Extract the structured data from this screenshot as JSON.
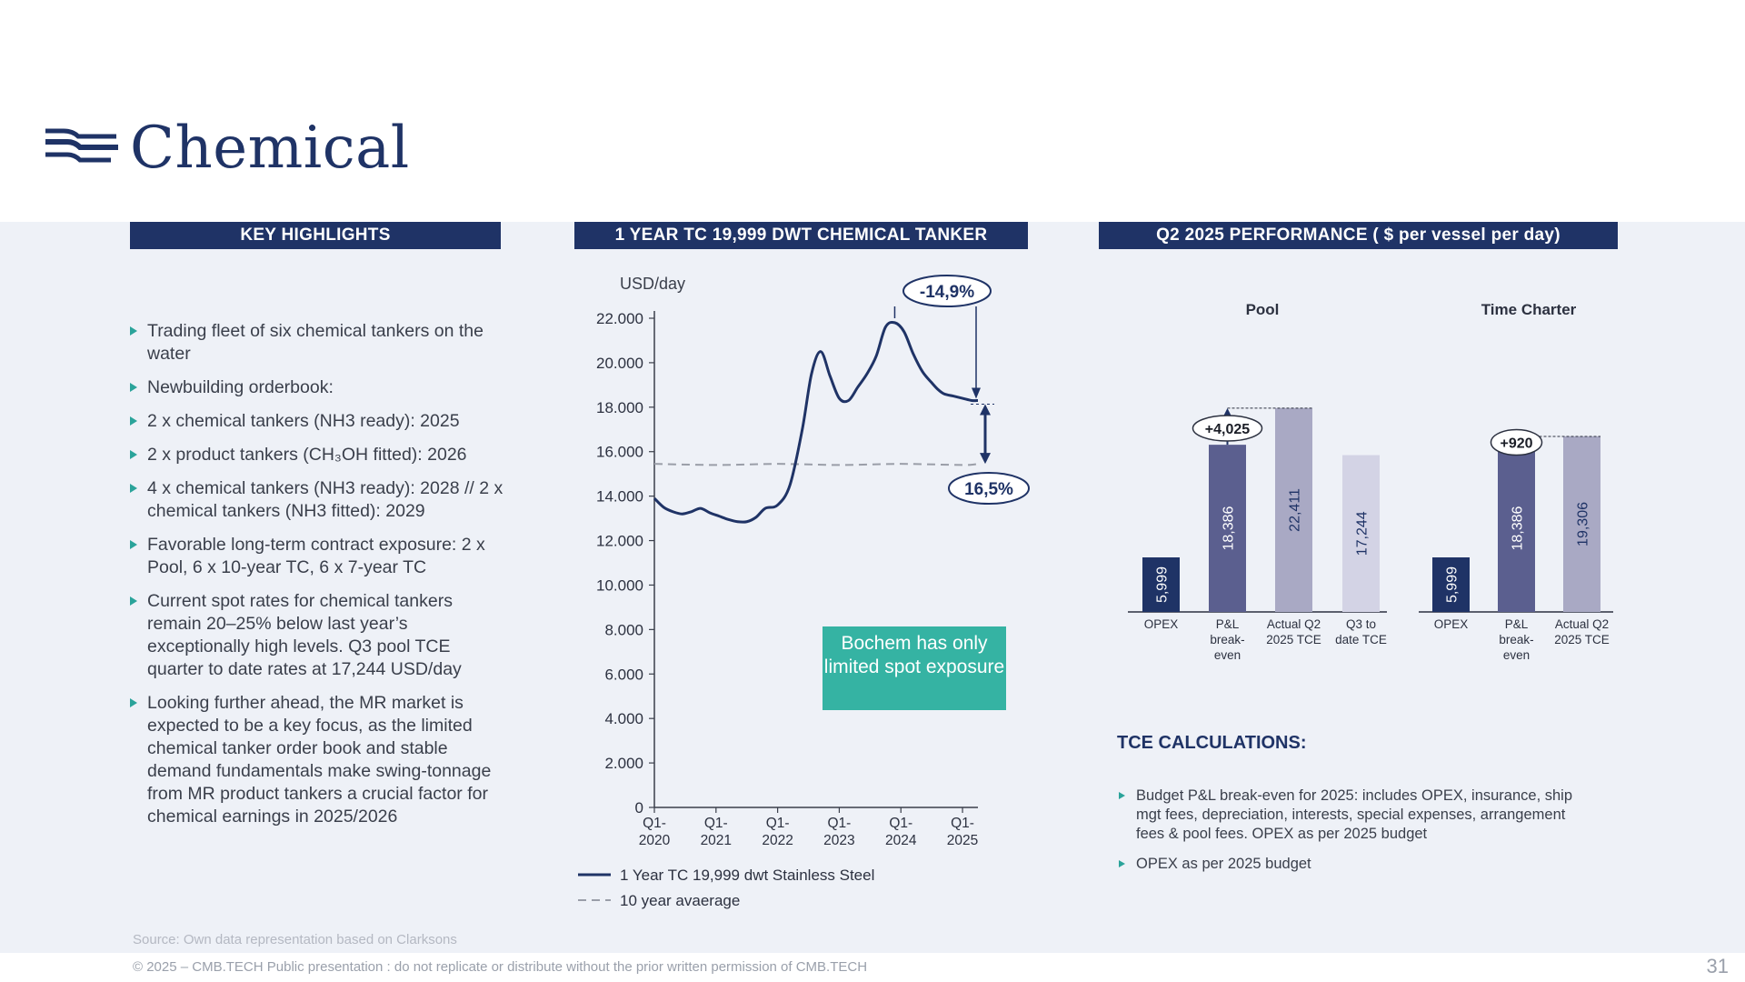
{
  "page": {
    "title": "Chemical",
    "page_number": "31",
    "source": "Source:  Own data representation based on Clarksons",
    "copyright": "© 2025 – CMB.TECH Public presentation : do not replicate or distribute without the prior written permission of CMB.TECH"
  },
  "highlights": {
    "header": "KEY HIGHLIGHTS",
    "items": [
      "Trading fleet of six chemical tankers on the water",
      "Newbuilding orderbook:",
      "2 x chemical tankers (NH3 ready): 2025",
      "2 x product tankers (CH₃OH fitted): 2026",
      "4 x chemical tankers (NH3 ready): 2028 // 2 x chemical tankers (NH3 fitted): 2029",
      "Favorable long-term contract exposure: 2 x Pool, 6 x 10-year TC, 6 x 7-year TC",
      "Current spot rates for chemical tankers remain 20–25% below last year’s exceptionally high levels. Q3 pool TCE quarter to date rates at 17,244 USD/day",
      "Looking further ahead, the MR market is expected to be a key focus, as the limited chemical tanker order book and stable demand fundamentals make swing-tonnage from MR product tankers a crucial factor for chemical earnings in 2025/2026"
    ]
  },
  "tc_chart": {
    "header": "1 YEAR TC 19,999 DWT CHEMICAL TANKER",
    "callout": "Bochem has only limited spot exposure",
    "annotations": {
      "drop": "-14,9%",
      "above_avg": "16,5%"
    }
  },
  "perf": {
    "header": "Q2 2025 PERFORMANCE ( $ per vessel per day)",
    "tce_title": "TCE CALCULATIONS:",
    "tce_items": [
      "Budget P&L break-even for 2025: includes OPEX, insurance, ship mgt fees, depreciation, interests, special expenses, arrangement fees & pool fees. OPEX as per 2025 budget",
      "OPEX as per 2025 budget"
    ]
  },
  "colors": {
    "navy": "#1f3366",
    "teal": "#35b3a3",
    "bar_opex": "#1f3366",
    "bar_breakeven": "#5b5f8f",
    "bar_actual": "#a9a9c4",
    "bar_q3": "#d3d3e5"
  },
  "chart_data": [
    {
      "type": "line",
      "title": "1 YEAR TC 19,999 DWT CHEMICAL TANKER",
      "ylabel": "USD/day",
      "ylim": [
        0,
        22000
      ],
      "yticks": [
        "0",
        "2.000",
        "4.000",
        "6.000",
        "8.000",
        "10.000",
        "12.000",
        "14.000",
        "16.000",
        "18.000",
        "20.000",
        "22.000"
      ],
      "xticks": [
        "Q1-\n2020",
        "Q1-\n2021",
        "Q1-\n2022",
        "Q1-\n2023",
        "Q1-\n2024",
        "Q1-\n2025"
      ],
      "xlim": [
        2020.0,
        2025.25
      ],
      "legend": "bottom",
      "series": [
        {
          "name": "1 Year TC 19,999 dwt Stainless Steel",
          "x": [
            2020.0,
            2020.15,
            2020.3,
            2020.45,
            2020.6,
            2020.75,
            2020.9,
            2021.05,
            2021.2,
            2021.35,
            2021.5,
            2021.65,
            2021.8,
            2022.0,
            2022.2,
            2022.4,
            2022.55,
            2022.7,
            2022.85,
            2023.0,
            2023.15,
            2023.3,
            2023.45,
            2023.6,
            2023.75,
            2023.9,
            2024.05,
            2024.2,
            2024.35,
            2024.5,
            2024.6,
            2024.7,
            2024.85,
            2025.0,
            2025.15,
            2025.25
          ],
          "y": [
            13900,
            13500,
            13300,
            13200,
            13300,
            13450,
            13250,
            13100,
            12950,
            12850,
            12850,
            13050,
            13450,
            13600,
            14500,
            17000,
            19500,
            20500,
            19400,
            18400,
            18300,
            18900,
            19500,
            20300,
            21600,
            21800,
            21400,
            20400,
            19600,
            19100,
            18800,
            18600,
            18500,
            18400,
            18300,
            18300
          ]
        },
        {
          "name": "10 year avaerage",
          "x": [
            2020.0,
            2021.0,
            2022.0,
            2023.0,
            2024.0,
            2025.0,
            2025.25
          ],
          "y": [
            15450,
            15400,
            15450,
            15400,
            15450,
            15400,
            15450
          ]
        }
      ]
    },
    {
      "type": "bar",
      "title": "Pool",
      "categories": [
        "OPEX",
        "P&L\nbreak-\neven",
        "Actual Q2\n2025 TCE",
        "Q3 to\ndate TCE"
      ],
      "values": [
        5999,
        18386,
        22411,
        17244
      ],
      "labels": [
        "5,999",
        "18,386",
        "22,411",
        "17,244"
      ],
      "annotation": "+4,025"
    },
    {
      "type": "bar",
      "title": "Time Charter",
      "categories": [
        "OPEX",
        "P&L\nbreak-\neven",
        "Actual Q2\n2025 TCE"
      ],
      "values": [
        5999,
        18386,
        19306
      ],
      "labels": [
        "5,999",
        "18,386",
        "19,306"
      ],
      "annotation": "+920"
    }
  ]
}
